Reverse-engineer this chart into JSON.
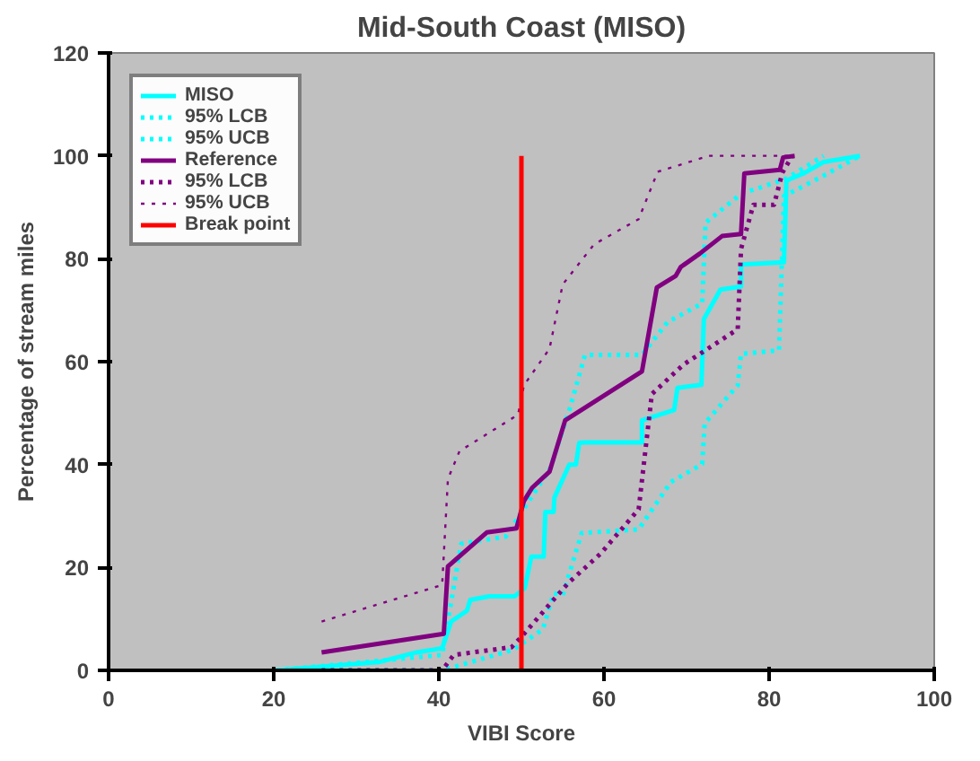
{
  "chart_data": {
    "type": "line",
    "title": "Mid-South Coast (MISO)",
    "xlabel": "VIBI Score",
    "ylabel": "Percentage of stream miles",
    "xlim": [
      0,
      100
    ],
    "ylim": [
      0,
      120
    ],
    "xticks": [
      0,
      20,
      40,
      60,
      80,
      100
    ],
    "yticks": [
      0,
      20,
      40,
      60,
      80,
      100,
      120
    ],
    "grid": false,
    "legend": "top left",
    "series": [
      {
        "name": "MISO",
        "color": "#00ffff",
        "line_style": "solid",
        "x": [
          20.3,
          32.7,
          37.3,
          40.4,
          41.5,
          43.4,
          43.8,
          46.1,
          49.2,
          50.4,
          51.2,
          52.7,
          52.9,
          53.9,
          54.0,
          55.8,
          56.6,
          57.0,
          57.7,
          64.6,
          64.6,
          68.5,
          68.9,
          71.8,
          72.1,
          74.1,
          76.6,
          76.6,
          81.8,
          82.1,
          84.3,
          86.6,
          91.0
        ],
        "values": [
          0,
          1.6,
          3.5,
          4.3,
          9.5,
          11.6,
          13.7,
          14.4,
          14.4,
          16,
          22.1,
          22.1,
          30.8,
          30.8,
          33.6,
          40,
          40,
          44.2,
          44.3,
          44.3,
          48.6,
          50.6,
          54.9,
          55.5,
          68.3,
          74,
          74.6,
          78.9,
          79.3,
          95.2,
          96.7,
          98.8,
          100
        ]
      },
      {
        "name": "95% LCB",
        "color": "#00ffff",
        "line_style": "dotted",
        "x": [
          20.3,
          40.4,
          49.0,
          52.6,
          53.9,
          55.0,
          57.3,
          64.2,
          68.1,
          71.9,
          72.2,
          76.2,
          76.6,
          81.2,
          81.8,
          86.2,
          91.0
        ],
        "values": [
          0,
          0,
          4,
          8,
          15,
          14.6,
          26.7,
          27.4,
          36.6,
          40.1,
          48,
          55.4,
          61.5,
          62.2,
          92.2,
          95.8,
          100
        ]
      },
      {
        "name": "95% UCB",
        "color": "#00ffff",
        "line_style": "dotted",
        "x": [
          20.3,
          40.4,
          42.7,
          48.1,
          53.5,
          55.8,
          57.7,
          64.6,
          67.7,
          71.9,
          72.3,
          76.6,
          82.0,
          86.6
        ],
        "values": [
          0,
          3,
          24.6,
          26,
          39.3,
          50.6,
          61.3,
          61.3,
          67.7,
          71.3,
          87,
          92.6,
          95.5,
          100
        ]
      },
      {
        "name": "Reference",
        "color": "#800080",
        "line_style": "solid",
        "x": [
          25.8,
          40.6,
          41.1,
          45.8,
          49.4,
          50.3,
          51.3,
          53.4,
          55.3,
          64.6,
          66.4,
          68.7,
          69.3,
          71.6,
          74.3,
          76.6,
          77.0,
          81.3,
          81.7,
          83.1
        ],
        "values": [
          3.5,
          7.1,
          20.2,
          26.8,
          27.6,
          32.9,
          35.5,
          38.6,
          48.6,
          58.1,
          74.4,
          76.7,
          78.4,
          81,
          84.4,
          84.8,
          96.6,
          97.3,
          99.7,
          100
        ]
      },
      {
        "name": "95% LCB",
        "color": "#800080",
        "line_style": "dotted",
        "x": [
          25.8,
          40.4,
          41.8,
          48.8,
          50.0,
          53.4,
          55.7,
          59.6,
          64.2,
          65.8,
          69.6,
          76.2,
          76.6,
          78.1,
          80.6,
          81.6,
          82.8
        ],
        "values": [
          0,
          0,
          3,
          4.5,
          6.5,
          12.8,
          17,
          22.7,
          31.3,
          53.7,
          59.4,
          66.3,
          81.9,
          90.5,
          90.5,
          96.7,
          100
        ]
      },
      {
        "name": "95% UCB",
        "color": "#800080",
        "line_style": "dashed",
        "x": [
          25.8,
          40.4,
          41.1,
          42.5,
          49.6,
          50.3,
          53.4,
          55.0,
          58.8,
          64.2,
          66.5,
          72.7,
          82.8
        ],
        "values": [
          9.5,
          16.6,
          37.2,
          42.6,
          49.7,
          55.4,
          62.5,
          75,
          82.8,
          87.7,
          96.9,
          100,
          100
        ]
      },
      {
        "name": "Break point",
        "color": "#ff0000",
        "line_style": "solid",
        "x": [
          50,
          50
        ],
        "values": [
          0,
          100
        ]
      }
    ]
  }
}
